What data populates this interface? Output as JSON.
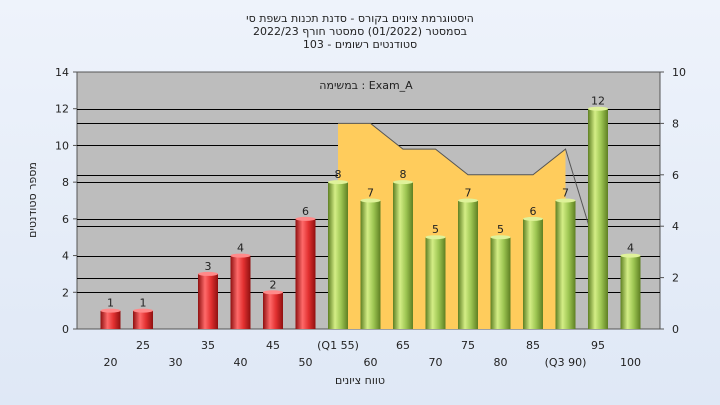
{
  "chart_data": {
    "type": "bar",
    "title_lines": [
      "היסטוגרמת ציונים בקורס - סדנת תכנות בשפת סי",
      "בסמסטר  (01/2022)  סמסטר חורף 2022/23",
      "סטודנטים רשומים - 103"
    ],
    "annotation": "במשימה : Exam_A",
    "xlabel": "טווח ציונים",
    "ylabel": "מספר סטודנטים",
    "ylim": [
      0,
      14
    ],
    "y_ticks": [
      0,
      2,
      4,
      6,
      8,
      10,
      12,
      14
    ],
    "y2lim": [
      0,
      10
    ],
    "y2_ticks": [
      0,
      2,
      4,
      6,
      8,
      10
    ],
    "grid": true,
    "x_labels_row1": [
      "25",
      "35",
      "45",
      "(Q1 55)",
      "65",
      "75",
      "85",
      "95"
    ],
    "x_labels_row2": [
      "20",
      "30",
      "40",
      "50",
      "60",
      "70",
      "80",
      "(Q3 90)",
      "100"
    ],
    "bars": [
      {
        "x": 20,
        "value": 1,
        "color": "red"
      },
      {
        "x": 25,
        "value": 1,
        "color": "red"
      },
      {
        "x": 35,
        "value": 3,
        "color": "red"
      },
      {
        "x": 40,
        "value": 4,
        "color": "red"
      },
      {
        "x": 45,
        "value": 2,
        "color": "red"
      },
      {
        "x": 50,
        "value": 6,
        "color": "red"
      },
      {
        "x": 55,
        "value": 8,
        "color": "green"
      },
      {
        "x": 60,
        "value": 7,
        "color": "green"
      },
      {
        "x": 65,
        "value": 8,
        "color": "green"
      },
      {
        "x": 70,
        "value": 5,
        "color": "green"
      },
      {
        "x": 75,
        "value": 7,
        "color": "green"
      },
      {
        "x": 80,
        "value": 5,
        "color": "green"
      },
      {
        "x": 85,
        "value": 6,
        "color": "green"
      },
      {
        "x": 90,
        "value": 7,
        "color": "green"
      },
      {
        "x": 95,
        "value": 12,
        "color": "green"
      },
      {
        "x": 100,
        "value": 4,
        "color": "green"
      }
    ],
    "area_series": {
      "name": "",
      "points": [
        {
          "x": 55,
          "y": 8
        },
        {
          "x": 60,
          "y": 8
        },
        {
          "x": 65,
          "y": 7
        },
        {
          "x": 70,
          "y": 7
        },
        {
          "x": 75,
          "y": 6
        },
        {
          "x": 80,
          "y": 6
        },
        {
          "x": 85,
          "y": 6
        },
        {
          "x": 90,
          "y": 7
        }
      ]
    },
    "colors": {
      "plot_bg": "#bdbdbd",
      "area_fill": "#ffcc5c",
      "red_bar": "#dd2a2a",
      "green_bar": "#9bc24a",
      "grid": "#000000"
    }
  }
}
